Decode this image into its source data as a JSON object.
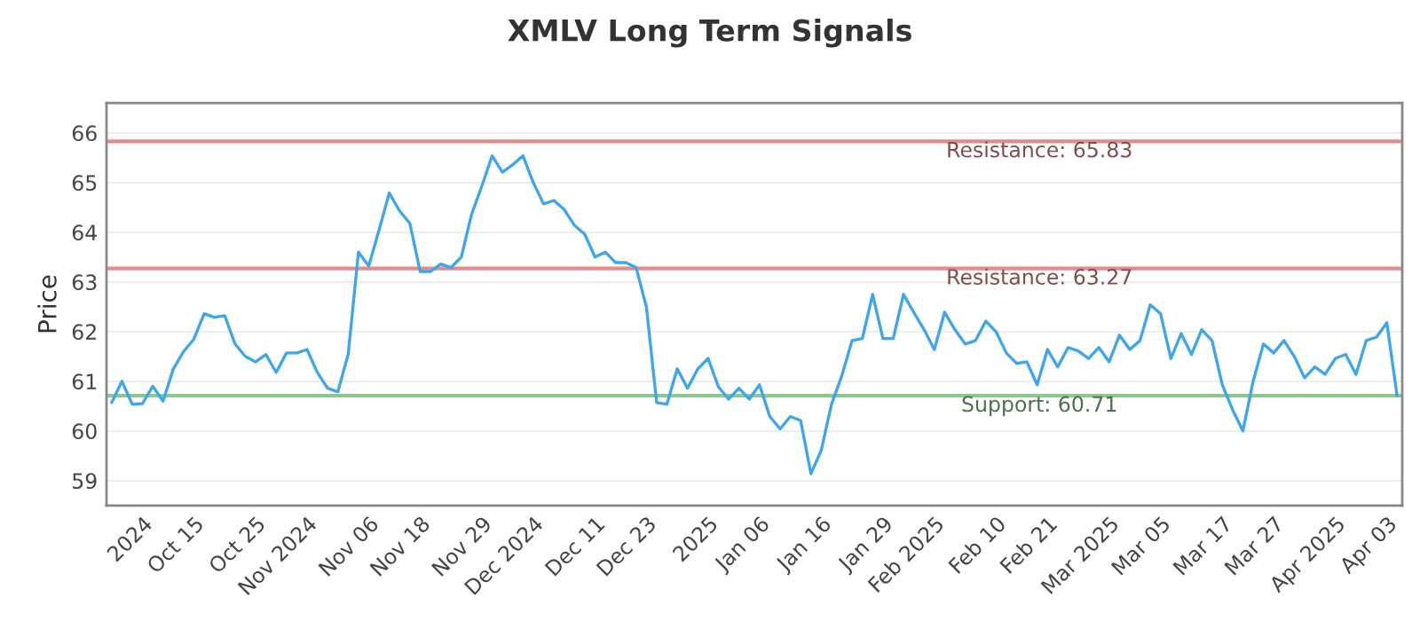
{
  "chart_data": {
    "type": "line",
    "title": "XMLV Long Term Signals",
    "ylabel": "Price",
    "categories": [
      null,
      null,
      null,
      "2024",
      null,
      null,
      null,
      null,
      "Oct 15",
      null,
      null,
      null,
      null,
      null,
      "Oct 25",
      null,
      null,
      null,
      null,
      "Nov 2024",
      null,
      null,
      null,
      null,
      null,
      "Nov 06",
      null,
      null,
      null,
      null,
      "Nov 18",
      null,
      null,
      null,
      null,
      null,
      "Nov 29",
      null,
      null,
      null,
      null,
      "Dec 2024",
      null,
      null,
      null,
      null,
      null,
      "Dec 11",
      null,
      null,
      null,
      null,
      "Dec 23",
      null,
      null,
      null,
      null,
      null,
      "2025",
      null,
      null,
      null,
      null,
      "Jan 06",
      null,
      null,
      null,
      null,
      null,
      "Jan 16",
      null,
      null,
      null,
      null,
      null,
      "Jan 29",
      null,
      null,
      null,
      null,
      "Feb 2025",
      null,
      null,
      null,
      null,
      null,
      "Feb 10",
      null,
      null,
      null,
      null,
      "Feb 21",
      null,
      null,
      null,
      null,
      null,
      "Mar 2025",
      null,
      null,
      null,
      null,
      "Mar 05",
      null,
      null,
      null,
      null,
      null,
      "Mar 17",
      null,
      null,
      null,
      null,
      "Mar 27",
      null,
      null,
      null,
      null,
      null,
      "Apr 2025",
      null,
      null,
      null,
      null,
      "Apr 03",
      null
    ],
    "series": [
      {
        "color": "#3ea6ec",
        "values": [
          60.57,
          61.0,
          60.54,
          60.55,
          60.9,
          60.6,
          61.25,
          61.6,
          61.85,
          62.36,
          62.29,
          62.32,
          61.75,
          61.5,
          61.39,
          61.54,
          61.18,
          61.57,
          61.57,
          61.64,
          61.18,
          60.86,
          60.79,
          61.54,
          63.6,
          63.32,
          64.04,
          64.79,
          64.43,
          64.18,
          63.21,
          63.21,
          63.36,
          63.29,
          63.5,
          64.36,
          64.93,
          65.54,
          65.21,
          65.36,
          65.54,
          65.0,
          64.57,
          64.64,
          64.46,
          64.14,
          63.96,
          63.5,
          63.6,
          63.39,
          63.39,
          63.29,
          62.5,
          60.57,
          60.54,
          61.25,
          60.86,
          61.25,
          61.46,
          60.89,
          60.64,
          60.86,
          60.64,
          60.93,
          60.29,
          60.04,
          60.29,
          60.21,
          59.14,
          59.61,
          60.54,
          61.11,
          61.82,
          61.86,
          62.75,
          61.86,
          61.86,
          62.75,
          62.39,
          62.04,
          61.64,
          62.39,
          62.04,
          61.75,
          61.82,
          62.21,
          62.0,
          61.57,
          61.36,
          61.39,
          60.93,
          61.64,
          61.29,
          61.68,
          61.61,
          61.46,
          61.68,
          61.39,
          61.93,
          61.64,
          61.82,
          62.54,
          62.36,
          61.46,
          61.96,
          61.54,
          62.04,
          61.82,
          60.93,
          60.43,
          60.0,
          61.0,
          61.75,
          61.57,
          61.82,
          61.5,
          61.07,
          61.29,
          61.14,
          61.46,
          61.54,
          61.14,
          61.82,
          61.89,
          62.18,
          60.71
        ]
      }
    ],
    "ylim": [
      58.5,
      66.6
    ],
    "yticks": [
      59,
      60,
      61,
      62,
      63,
      64,
      65,
      66
    ],
    "grid": "y",
    "legend": false,
    "ref_lines": [
      {
        "axis": "y",
        "value": 65.83,
        "label": "Resistance: 65.83",
        "color": "#e88a8a"
      },
      {
        "axis": "y",
        "value": 63.27,
        "label": "Resistance: 63.27",
        "color": "#e88a8a"
      },
      {
        "axis": "y",
        "value": 60.71,
        "label": "Support: 60.71",
        "color": "#8cc88c"
      }
    ]
  }
}
